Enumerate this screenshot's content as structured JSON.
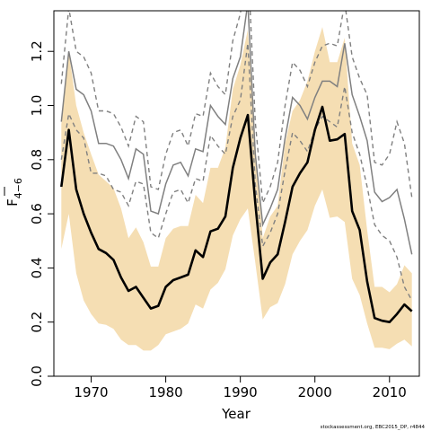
{
  "chart_data": {
    "type": "line",
    "xlabel": "Year",
    "ylabel_main": "F",
    "ylabel_sub": "4−6",
    "credit": "stockassessment.org, EBC2015_DP, r4844",
    "xlim": [
      1965,
      2014
    ],
    "ylim": [
      0.0,
      1.35
    ],
    "x_ticks": [
      1970,
      1980,
      1990,
      2000,
      2010
    ],
    "y_ticks": [
      0.0,
      0.2,
      0.4,
      0.6,
      0.8,
      1.0,
      1.2
    ],
    "x_tick_labels": [
      "1970",
      "1980",
      "1990",
      "2000",
      "2010"
    ],
    "y_tick_labels": [
      "0.0",
      "0.2",
      "0.4",
      "0.6",
      "0.8",
      "1.0",
      "1.2"
    ],
    "years": [
      1966,
      1967,
      1968,
      1969,
      1970,
      1971,
      1972,
      1973,
      1974,
      1975,
      1976,
      1977,
      1978,
      1979,
      1980,
      1981,
      1982,
      1983,
      1984,
      1985,
      1986,
      1987,
      1988,
      1989,
      1990,
      1991,
      1992,
      1993,
      1994,
      1995,
      1996,
      1997,
      1998,
      1999,
      2000,
      2001,
      2002,
      2003,
      2004,
      2005,
      2006,
      2007,
      2008,
      2009,
      2010,
      2011,
      2012,
      2013
    ],
    "series": [
      {
        "role": "estimate",
        "color": "#000000",
        "values": [
          0.7,
          0.91,
          0.69,
          0.6,
          0.53,
          0.47,
          0.455,
          0.43,
          0.365,
          0.315,
          0.33,
          0.29,
          0.25,
          0.26,
          0.33,
          0.355,
          0.365,
          0.375,
          0.465,
          0.44,
          0.535,
          0.545,
          0.59,
          0.77,
          0.88,
          0.965,
          0.64,
          0.36,
          0.42,
          0.45,
          0.57,
          0.7,
          0.75,
          0.79,
          0.91,
          0.995,
          0.87,
          0.875,
          0.895,
          0.61,
          0.54,
          0.35,
          0.215,
          0.205,
          0.2,
          0.23,
          0.265,
          0.24
        ]
      },
      {
        "role": "estimate_band",
        "color": "#f5deb3",
        "lower": [
          0.47,
          0.6,
          0.38,
          0.28,
          0.23,
          0.195,
          0.19,
          0.175,
          0.135,
          0.115,
          0.115,
          0.095,
          0.095,
          0.115,
          0.155,
          0.165,
          0.175,
          0.195,
          0.265,
          0.25,
          0.32,
          0.345,
          0.395,
          0.52,
          0.58,
          0.62,
          0.42,
          0.21,
          0.255,
          0.27,
          0.34,
          0.45,
          0.5,
          0.54,
          0.63,
          0.69,
          0.585,
          0.59,
          0.57,
          0.36,
          0.3,
          0.195,
          0.105,
          0.105,
          0.1,
          0.12,
          0.135,
          0.11
        ],
        "upper": [
          0.93,
          1.2,
          1.0,
          0.9,
          0.82,
          0.745,
          0.72,
          0.695,
          0.62,
          0.51,
          0.55,
          0.495,
          0.405,
          0.405,
          0.51,
          0.545,
          0.555,
          0.555,
          0.67,
          0.64,
          0.77,
          0.77,
          0.845,
          1.06,
          1.15,
          1.28,
          0.86,
          0.51,
          0.59,
          0.63,
          0.86,
          0.98,
          1.02,
          1.09,
          1.2,
          1.29,
          1.16,
          1.16,
          1.25,
          0.86,
          0.78,
          0.54,
          0.33,
          0.33,
          0.31,
          0.34,
          0.41,
          0.38
        ]
      },
      {
        "role": "reference",
        "color": "#808080",
        "values": [
          0.94,
          1.2,
          1.06,
          1.04,
          0.98,
          0.86,
          0.86,
          0.85,
          0.8,
          0.73,
          0.84,
          0.82,
          0.61,
          0.6,
          0.71,
          0.78,
          0.79,
          0.74,
          0.84,
          0.83,
          1.0,
          0.96,
          0.93,
          1.1,
          1.18,
          1.38,
          0.82,
          0.56,
          0.62,
          0.69,
          0.88,
          1.03,
          1.0,
          0.95,
          1.03,
          1.09,
          1.09,
          1.07,
          1.23,
          1.04,
          0.96,
          0.87,
          0.68,
          0.645,
          0.66,
          0.69,
          0.58,
          0.45
        ]
      },
      {
        "role": "reference_band",
        "color": "#808080",
        "lower": [
          0.8,
          0.97,
          0.91,
          0.88,
          0.75,
          0.75,
          0.74,
          0.69,
          0.68,
          0.63,
          0.72,
          0.71,
          0.53,
          0.51,
          0.6,
          0.68,
          0.69,
          0.64,
          0.73,
          0.72,
          0.89,
          0.85,
          0.82,
          0.96,
          1.02,
          1.23,
          0.71,
          0.48,
          0.53,
          0.6,
          0.76,
          0.9,
          0.87,
          0.83,
          0.91,
          0.96,
          0.94,
          0.92,
          1.07,
          0.9,
          0.82,
          0.7,
          0.56,
          0.52,
          0.5,
          0.44,
          0.33,
          0.28
        ],
        "upper": [
          1.08,
          1.36,
          1.2,
          1.18,
          1.12,
          0.98,
          0.98,
          0.97,
          0.92,
          0.85,
          0.96,
          0.94,
          0.7,
          0.69,
          0.82,
          0.9,
          0.91,
          0.85,
          0.97,
          0.96,
          1.12,
          1.07,
          1.04,
          1.24,
          1.34,
          1.54,
          0.94,
          0.64,
          0.7,
          0.79,
          1.0,
          1.16,
          1.13,
          1.07,
          1.16,
          1.22,
          1.23,
          1.22,
          1.38,
          1.18,
          1.1,
          1.04,
          0.79,
          0.78,
          0.82,
          0.94,
          0.86,
          0.66
        ]
      }
    ]
  }
}
